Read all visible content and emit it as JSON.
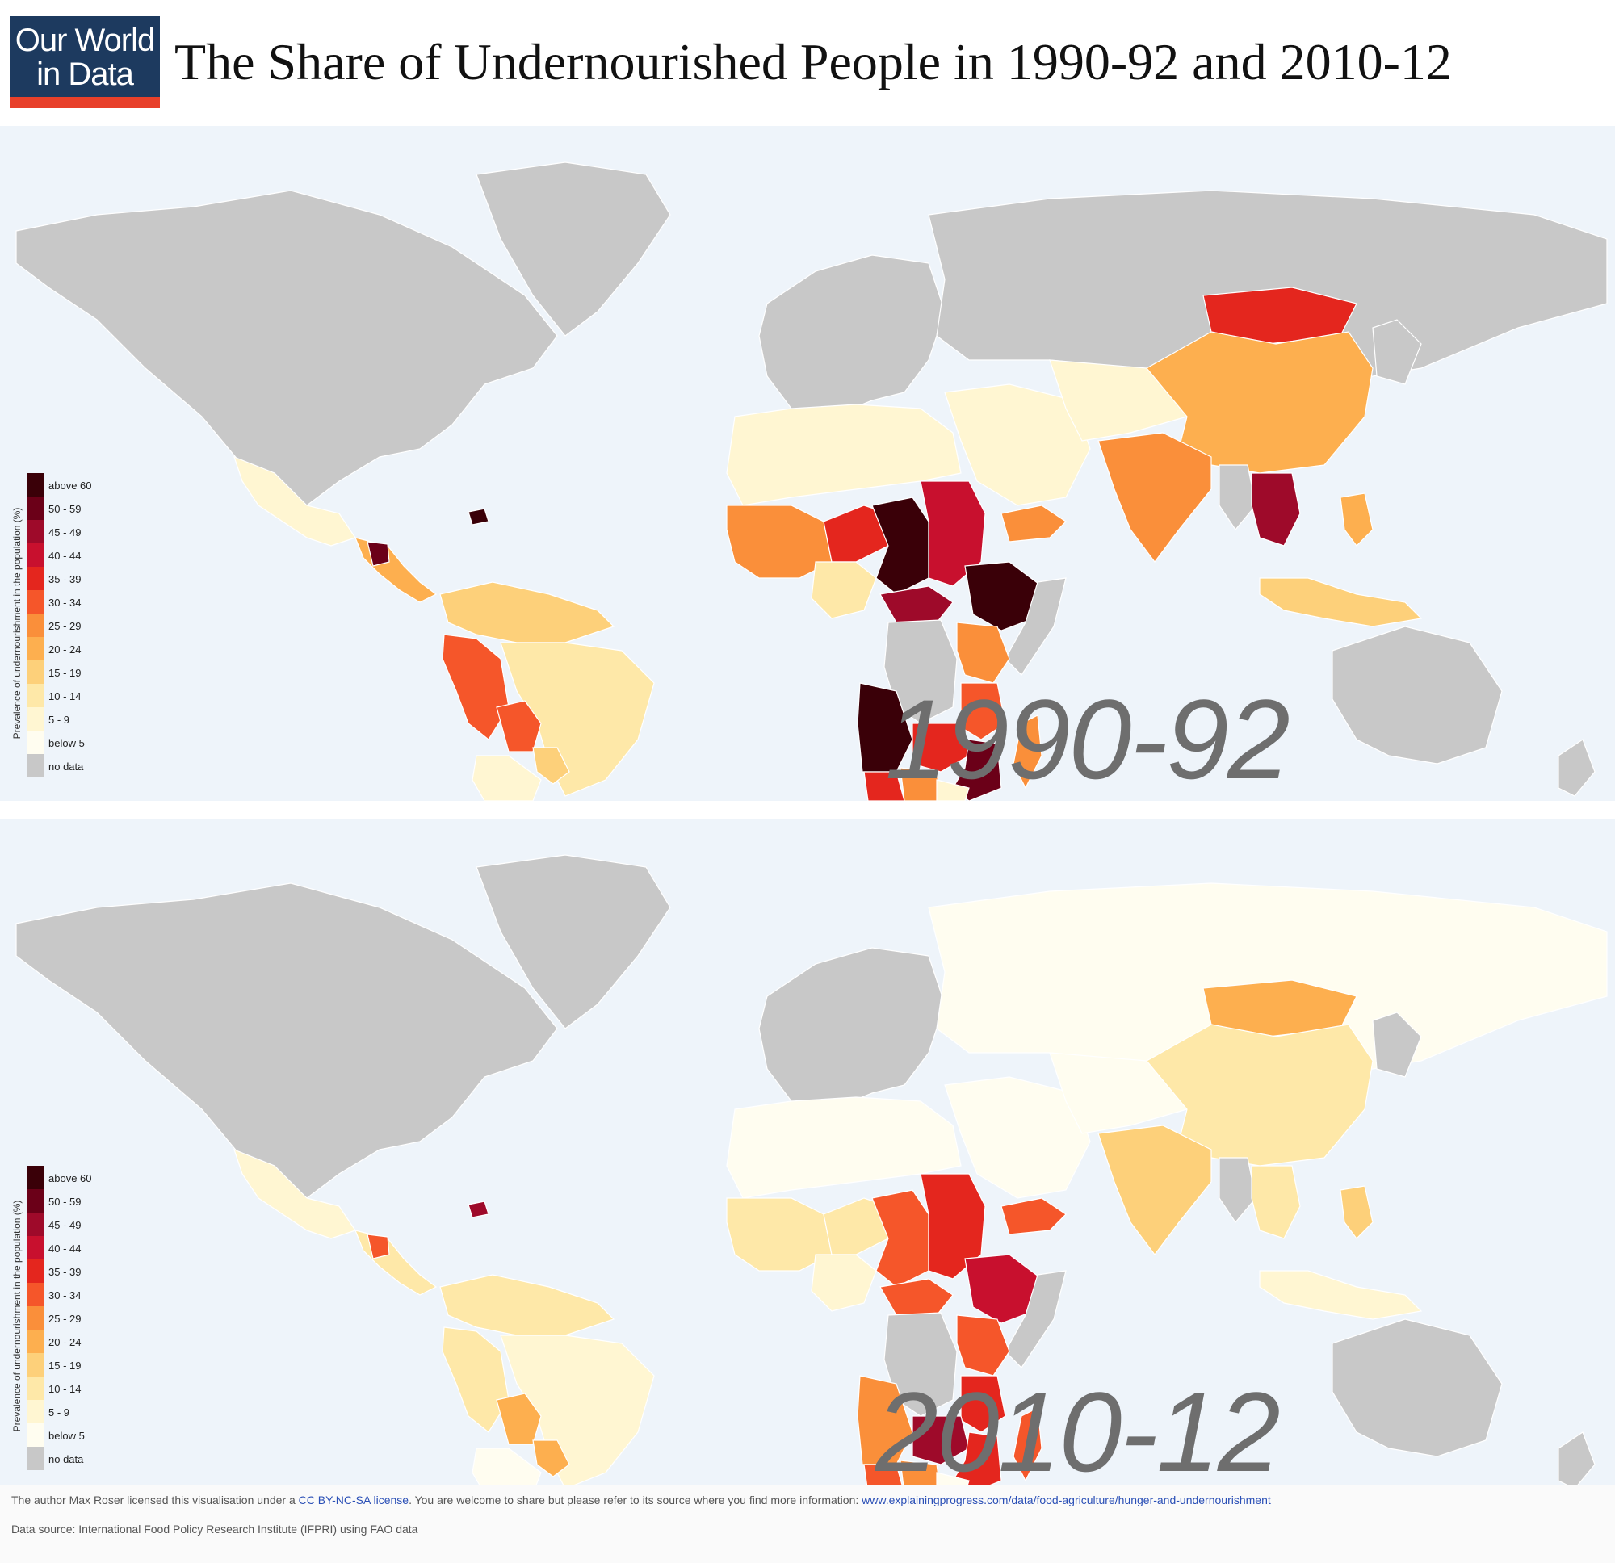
{
  "header": {
    "logo_line1": "Our World",
    "logo_line2": "in Data",
    "title": "The Share of Undernourished People in 1990-92 and 2010-12"
  },
  "legend": {
    "title": "Prevalence of undernourishment in the population (%)",
    "items": [
      {
        "label": "above 60",
        "color": "#3a0008"
      },
      {
        "label": "50 - 59",
        "color": "#6b0018"
      },
      {
        "label": "45 - 49",
        "color": "#9e0a2a"
      },
      {
        "label": "40 - 44",
        "color": "#c8102e"
      },
      {
        "label": "35 - 39",
        "color": "#e4261e"
      },
      {
        "label": "30 - 34",
        "color": "#f5562a"
      },
      {
        "label": "25 - 29",
        "color": "#fa8f3a"
      },
      {
        "label": "20 - 24",
        "color": "#fdaf4f"
      },
      {
        "label": "15 - 19",
        "color": "#fdd07a"
      },
      {
        "label": "10 - 14",
        "color": "#fee8a8"
      },
      {
        "label": "5 - 9",
        "color": "#fff6d2"
      },
      {
        "label": "below 5",
        "color": "#fffdf0"
      },
      {
        "label": "no data",
        "color": "#c8c8c8"
      }
    ]
  },
  "maps": [
    {
      "year_label": "1990-92",
      "regions": {
        "north_america": "no data",
        "greenland": "no data",
        "mexico": "5 - 9",
        "central_america": "20 - 24",
        "guatemala": "50 - 59",
        "haiti": "above 60",
        "south_america_north": "15 - 19",
        "peru": "30 - 34",
        "bolivia": "30 - 34",
        "brazil": "10 - 14",
        "paraguay": "15 - 19",
        "argentina_chile": "5 - 9",
        "europe": "no data",
        "russia": "no data",
        "north_africa": "5 - 9",
        "sahel_west": "25 - 29",
        "niger": "35 - 39",
        "chad": "above 60",
        "sudan": "40 - 44",
        "ethiopia": "above 60",
        "somalia": "no data",
        "nigeria": "10 - 14",
        "car": "45 - 49",
        "drc": "no data",
        "kenya_uganda": "25 - 29",
        "tanzania": "30 - 34",
        "angola": "above 60",
        "zambia": "35 - 39",
        "mozambique": "50 - 59",
        "namibia": "35 - 39",
        "botswana": "25 - 29",
        "south_africa": "5 - 9",
        "madagascar": "25 - 29",
        "middle_east": "5 - 9",
        "yemen": "25 - 29",
        "central_asia": "5 - 9",
        "mongolia": "35 - 39",
        "china": "20 - 24",
        "india": "25 - 29",
        "myanmar": "no data",
        "indochina": "45 - 49",
        "indonesia": "15 - 19",
        "philippines": "20 - 24",
        "australia": "no data",
        "nz": "no data",
        "japan_korea": "no data"
      }
    },
    {
      "year_label": "2010-12",
      "regions": {
        "north_america": "no data",
        "greenland": "no data",
        "mexico": "5 - 9",
        "central_america": "10 - 14",
        "guatemala": "30 - 34",
        "haiti": "45 - 49",
        "south_america_north": "10 - 14",
        "peru": "10 - 14",
        "bolivia": "20 - 24",
        "brazil": "5 - 9",
        "paraguay": "20 - 24",
        "argentina_chile": "below 5",
        "europe": "no data",
        "russia": "below 5",
        "north_africa": "below 5",
        "sahel_west": "10 - 14",
        "niger": "10 - 14",
        "chad": "30 - 34",
        "sudan": "35 - 39",
        "ethiopia": "40 - 44",
        "somalia": "no data",
        "nigeria": "5 - 9",
        "car": "30 - 34",
        "drc": "no data",
        "kenya_uganda": "30 - 34",
        "tanzania": "35 - 39",
        "angola": "25 - 29",
        "zambia": "45 - 49",
        "mozambique": "35 - 39",
        "namibia": "30 - 34",
        "botswana": "25 - 29",
        "south_africa": "below 5",
        "madagascar": "30 - 34",
        "middle_east": "below 5",
        "yemen": "30 - 34",
        "central_asia": "below 5",
        "mongolia": "20 - 24",
        "china": "10 - 14",
        "india": "15 - 19",
        "myanmar": "no data",
        "indochina": "10 - 14",
        "indonesia": "5 - 9",
        "philippines": "15 - 19",
        "australia": "no data",
        "nz": "no data",
        "japan_korea": "no data"
      }
    }
  ],
  "footer": {
    "credit_prefix": "The author Max Roser licensed this visualisation under a ",
    "license_link": "CC BY-NC-SA license",
    "credit_middle": ". You are welcome to share but please refer to its source where you find more information: ",
    "source_link": "www.explainingprogress.com/data/food-agriculture/hunger-and-undernourishment",
    "data_source": "Data source: International Food Policy Research Institute (IFPRI) using FAO data"
  }
}
